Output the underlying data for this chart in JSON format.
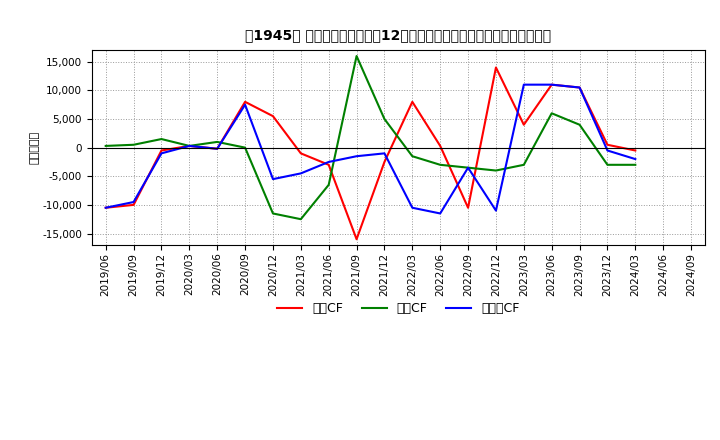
{
  "title": "　1945、 キャッシュフローの12か月移動合計の対前年同期増減額の推移",
  "ylabel": "（百万円）",
  "x_labels": [
    "2019/06",
    "2019/09",
    "2019/12",
    "2020/03",
    "2020/06",
    "2020/09",
    "2020/12",
    "2021/03",
    "2021/06",
    "2021/09",
    "2021/12",
    "2022/03",
    "2022/06",
    "2022/09",
    "2022/12",
    "2023/03",
    "2023/06",
    "2023/09",
    "2023/12",
    "2024/03",
    "2024/06",
    "2024/09"
  ],
  "operating_cf": [
    -10500,
    -10000,
    -500,
    300,
    -200,
    8000,
    5500,
    -1000,
    -3000,
    -16000,
    -2500,
    8000,
    300,
    -10500,
    14000,
    4000,
    11000,
    10500,
    500,
    -500,
    null,
    null
  ],
  "investing_cf": [
    300,
    500,
    1500,
    300,
    1000,
    0,
    -11500,
    -12500,
    -6500,
    16000,
    5000,
    -1500,
    -3000,
    -3500,
    -4000,
    -3000,
    6000,
    4000,
    -3000,
    -3000,
    null,
    null
  ],
  "free_cf": [
    -10500,
    -9500,
    -1000,
    300,
    -200,
    7500,
    -5500,
    -4500,
    -2500,
    -1500,
    -1000,
    -10500,
    -11500,
    -3500,
    -11000,
    11000,
    11000,
    10500,
    -500,
    -2000,
    null,
    null
  ],
  "operating_color": "#FF0000",
  "investing_color": "#008000",
  "free_color": "#0000FF",
  "legend_labels": [
    "営業CF",
    "投資CF",
    "フリーCF"
  ],
  "ylim": [
    -17000,
    17000
  ],
  "yticks": [
    -15000,
    -10000,
    -5000,
    0,
    5000,
    10000,
    15000
  ],
  "background_color": "#ffffff",
  "grid_color": "#999999"
}
